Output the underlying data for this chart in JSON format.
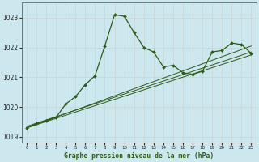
{
  "title": "Graphe pression niveau de la mer (hPa)",
  "background_color": "#cce8ee",
  "line_color": "#2d5a1b",
  "xlim": [
    -0.5,
    23.5
  ],
  "ylim": [
    1018.8,
    1023.5
  ],
  "yticks": [
    1019,
    1020,
    1021,
    1022,
    1023
  ],
  "xticks": [
    0,
    1,
    2,
    3,
    4,
    5,
    6,
    7,
    8,
    9,
    10,
    11,
    12,
    13,
    14,
    15,
    16,
    17,
    18,
    19,
    20,
    21,
    22,
    23
  ],
  "main_x": [
    0,
    1,
    2,
    3,
    4,
    5,
    6,
    7,
    8,
    9,
    10,
    11,
    12,
    13,
    14,
    15,
    16,
    17,
    18,
    19,
    20,
    21,
    22,
    23
  ],
  "main_y": [
    1019.3,
    1019.45,
    1019.55,
    1019.65,
    1020.1,
    1020.35,
    1020.75,
    1021.05,
    1022.05,
    1023.1,
    1023.05,
    1022.5,
    1022.0,
    1021.85,
    1021.35,
    1021.4,
    1021.15,
    1021.1,
    1021.2,
    1021.85,
    1021.9,
    1022.15,
    1022.1,
    1021.8
  ],
  "straight_lines": [
    {
      "x0": 0,
      "y0": 1019.3,
      "x1": 23,
      "y1": 1021.75
    },
    {
      "x0": 0,
      "y0": 1019.3,
      "x1": 23,
      "y1": 1022.05
    },
    {
      "x0": 0,
      "y0": 1019.35,
      "x1": 23,
      "y1": 1021.85
    }
  ]
}
